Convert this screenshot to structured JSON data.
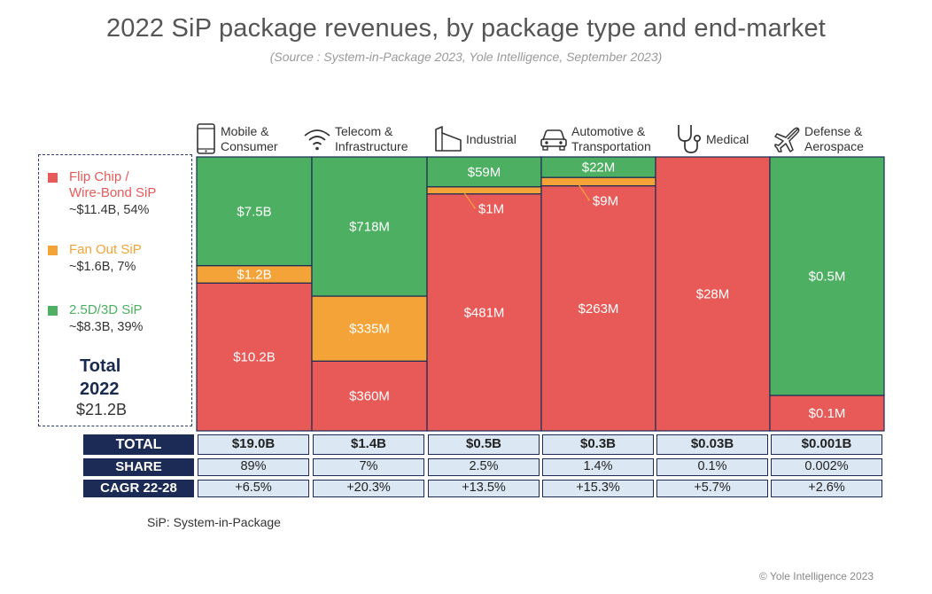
{
  "title": "2022 SiP package revenues, by package type and end-market",
  "subtitle": "(Source : System-in-Package 2023, Yole Intelligence, September 2023)",
  "legend": {
    "items": [
      {
        "name_line1": "Flip Chip /",
        "name_line2": "Wire-Bond SiP",
        "value": "~$11.4B, 54%",
        "color": "#e85a57"
      },
      {
        "name_line1": "Fan Out SiP",
        "name_line2": "",
        "value": "~$1.6B, 7%",
        "color": "#f4a338"
      },
      {
        "name_line1": "2.5D/3D SiP",
        "name_line2": "",
        "value": "~$8.3B, 39%",
        "color": "#4daf62"
      }
    ],
    "total_line1": "Total",
    "total_line2": "2022",
    "total_value": "$21.2B"
  },
  "markets": [
    {
      "line1": "Mobile &",
      "line2": "Consumer",
      "icon": "smartphone-icon"
    },
    {
      "line1": "Telecom &",
      "line2": "Infrastructure",
      "icon": "wifi-icon"
    },
    {
      "line1": "Industrial",
      "line2": "",
      "icon": "factory-icon"
    },
    {
      "line1": "Automotive &",
      "line2": "Transportation",
      "icon": "car-icon"
    },
    {
      "line1": "Medical",
      "line2": "",
      "icon": "stethoscope-icon"
    },
    {
      "line1": "Defense &",
      "line2": "Aerospace",
      "icon": "airplane-icon"
    }
  ],
  "chart_data": {
    "type": "bar",
    "stacked": true,
    "normalized_100_percent": true,
    "categories": [
      "Mobile & Consumer",
      "Telecom & Infrastructure",
      "Industrial",
      "Automotive & Transportation",
      "Medical",
      "Defense & Aerospace"
    ],
    "series": [
      {
        "name": "Flip Chip / Wire-Bond SiP",
        "color": "#e85a57",
        "values": [
          10.2,
          0.36,
          0.481,
          0.263,
          0.028,
          0.0001
        ],
        "labels": [
          "$10.2B",
          "$360M",
          "$481M",
          "$263M",
          "$28M",
          "$0.1M"
        ]
      },
      {
        "name": "Fan Out SiP",
        "color": "#f4a338",
        "values": [
          1.2,
          0.335,
          0.001,
          0.009,
          0,
          0
        ],
        "labels": [
          "$1.2B",
          "$335M",
          "$1M",
          "$9M",
          "",
          ""
        ]
      },
      {
        "name": "2.5D/3D SiP",
        "color": "#4daf62",
        "values": [
          7.5,
          0.718,
          0.059,
          0.022,
          0,
          0.0005
        ],
        "labels": [
          "$7.5B",
          "$718M",
          "$59M",
          "$22M",
          "",
          "$0.5M"
        ]
      }
    ],
    "callouts": [
      {
        "category_index": 2,
        "series_index": 1
      },
      {
        "category_index": 3,
        "series_index": 1
      }
    ]
  },
  "table": {
    "rows": [
      {
        "label": "TOTAL",
        "values": [
          "$19.0B",
          "$1.4B",
          "$0.5B",
          "$0.3B",
          "$0.03B",
          "$0.001B"
        ]
      },
      {
        "label": "SHARE",
        "values": [
          "89%",
          "7%",
          "2.5%",
          "1.4%",
          "0.1%",
          "0.002%"
        ]
      },
      {
        "label": "CAGR 22-28",
        "values": [
          "+6.5%",
          "+20.3%",
          "+13.5%",
          "+15.3%",
          "+5.7%",
          "+2.6%"
        ]
      }
    ]
  },
  "footnote": "SiP: System-in-Package",
  "copyright": "© Yole Intelligence 2023"
}
